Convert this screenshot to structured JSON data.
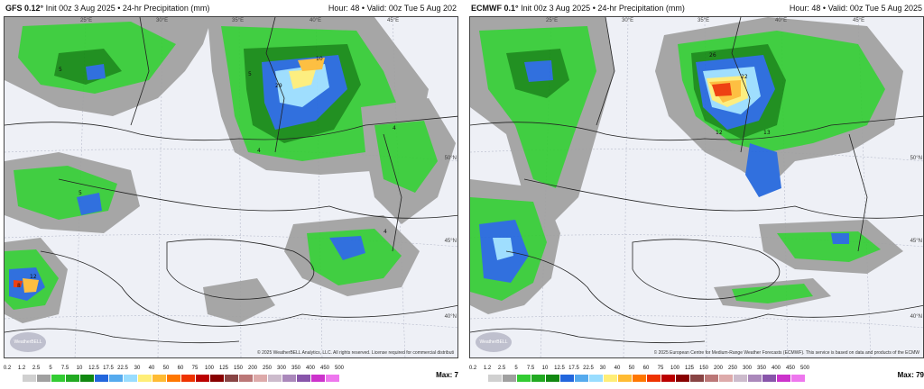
{
  "panels": [
    {
      "header_model": "GFS 0.12°",
      "header_info": "Init 00z 3 Aug 2025 • 24-hr Precipitation (mm)",
      "header_hour": "Hour: 48 • Valid: 00z Tue 5 Aug 202",
      "credit": "© 2025 WeatherBELL Analytics, LLC. All rights reserved. License required for commercial distributi",
      "max_label": "Max: 7",
      "lon_labels": [
        "25°E",
        "30°E",
        "35°E",
        "40°E",
        "45°E"
      ],
      "lat_labels": [
        "50°N",
        "45°N",
        "40°N"
      ],
      "map_values": [
        "4",
        "29",
        "10",
        "5",
        "4",
        "5",
        "12",
        "4",
        "8",
        "5"
      ]
    },
    {
      "header_model": "ECMWF 0.1°",
      "header_info": "Init 00z 3 Aug 2025 • 24-hr Precipitation (mm)",
      "header_hour": "Hour: 48 • Valid: 00z Tue 5 Aug 2025",
      "credit": "© 2025 European Centre for Medium-Range Weather Forecasts (ECMWF). This service is based on data and products of the ECMW",
      "max_label": "Max: 79",
      "lon_labels": [
        "25°E",
        "30°E",
        "35°E",
        "40°E",
        "45°E"
      ],
      "lat_labels": [
        "50°N",
        "45°N",
        "40°N"
      ],
      "map_values": [
        "26",
        "22",
        "13",
        "12"
      ]
    }
  ],
  "logo_text": "WeatherBELL",
  "legend": {
    "ticks": [
      "0.2",
      "1.2",
      "2.5",
      "5",
      "7.5",
      "10",
      "12.5",
      "17.5",
      "22.5",
      "30",
      "40",
      "50",
      "60",
      "75",
      "100",
      "125",
      "150",
      "200",
      "250",
      "300",
      "350",
      "400",
      "450",
      "500"
    ],
    "colors": [
      "#ffffff",
      "#d0d0d0",
      "#a0a0a0",
      "#33cc33",
      "#22aa22",
      "#118811",
      "#2266dd",
      "#55aaee",
      "#99ddff",
      "#ffee77",
      "#ffbb33",
      "#ff7700",
      "#ee3300",
      "#bb0000",
      "#880000",
      "#884444",
      "#bb7777",
      "#ddaaaa",
      "#ccbbcc",
      "#aa88bb",
      "#8855aa",
      "#cc33cc",
      "#ee77ee"
    ]
  }
}
